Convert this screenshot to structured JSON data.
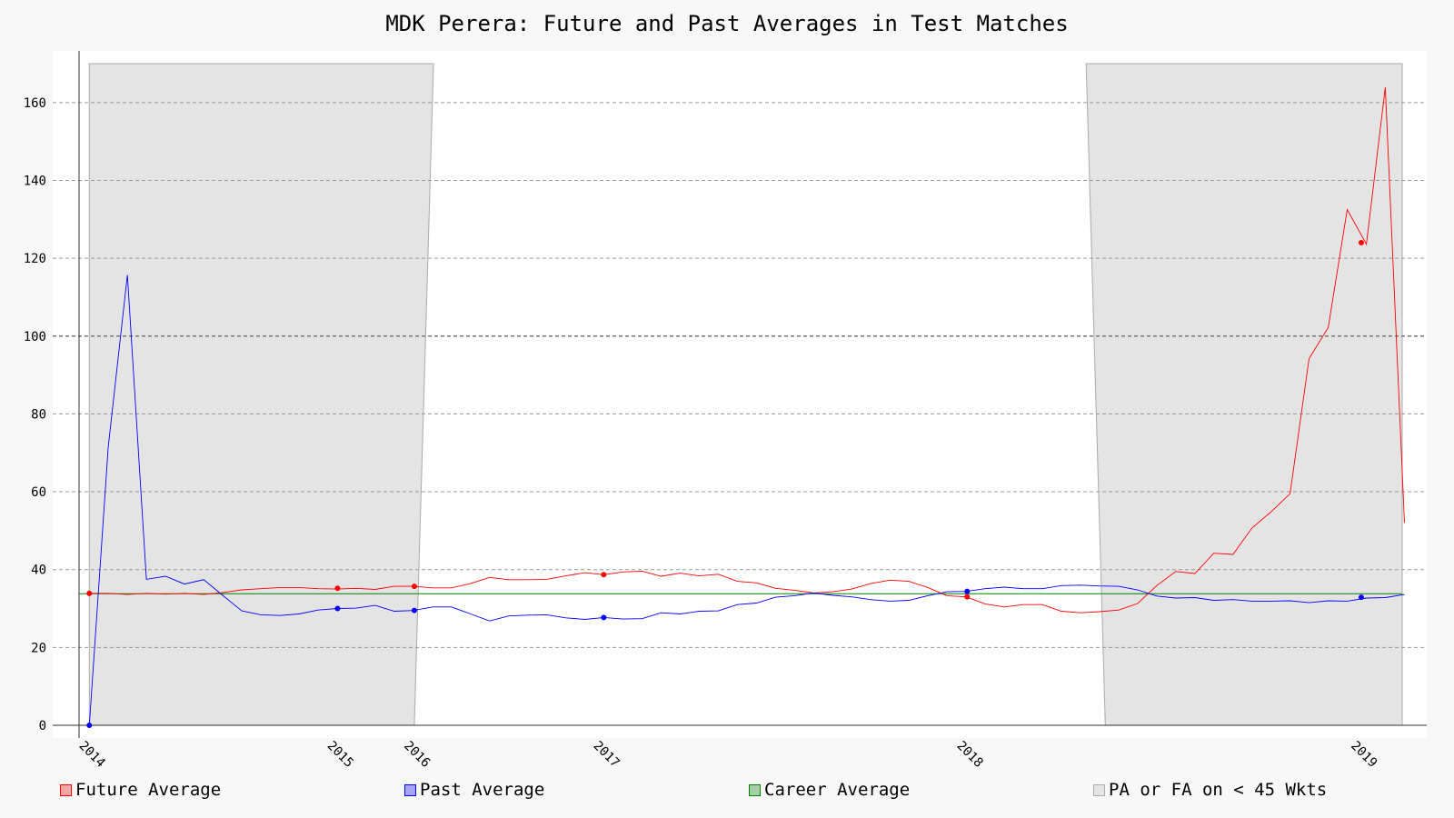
{
  "chart_data": {
    "type": "line",
    "title": "MDK Perera: Future and Past Averages in Test Matches",
    "xlabel": "",
    "ylabel": "",
    "xlim": [
      2013.96,
      2019.13
    ],
    "ylim": [
      0,
      170
    ],
    "yticks": [
      0,
      20,
      40,
      60,
      80,
      100,
      120,
      140,
      160
    ],
    "xticks": [
      {
        "label": "2014",
        "x": 2014.0
      },
      {
        "label": "2015",
        "x": 2014.97
      },
      {
        "label": "2016",
        "x": 2015.27
      },
      {
        "label": "2017",
        "x": 2016.01
      },
      {
        "label": "2018",
        "x": 2017.43
      },
      {
        "label": "2019",
        "x": 2018.97
      }
    ],
    "grid": "horizontal-dashed",
    "legend_position": "bottom",
    "colors": {
      "future": "#ff0000",
      "past": "#0000ff",
      "career": "#008000",
      "shade": "#e4e4e4",
      "shade_edge": "#aaaaaa"
    },
    "career_average": 33.8,
    "shaded_regions": [
      {
        "bottom": [
          [
            2014.0,
            0
          ],
          [
            2015.27,
            0
          ]
        ],
        "top": [
          [
            2014.0,
            170
          ],
          [
            2015.345,
            170
          ]
        ]
      },
      {
        "bottom": [
          [
            2017.97,
            0
          ],
          [
            2019.13,
            0
          ]
        ],
        "top": [
          [
            2017.895,
            170
          ],
          [
            2019.13,
            170
          ]
        ]
      }
    ],
    "series": [
      {
        "name": "Future Average",
        "key": "future",
        "markers": [
          [
            2014.0,
            33.9
          ],
          [
            2014.97,
            35.2
          ],
          [
            2015.27,
            35.7
          ],
          [
            2016.01,
            38.7
          ],
          [
            2017.43,
            33.0
          ],
          [
            2018.97,
            124.0
          ]
        ],
        "points": [
          [
            2014.0,
            33.9
          ],
          [
            2014.074,
            33.9
          ],
          [
            2014.149,
            33.6
          ],
          [
            2014.223,
            33.9
          ],
          [
            2014.298,
            33.7
          ],
          [
            2014.372,
            33.9
          ],
          [
            2014.447,
            33.6
          ],
          [
            2014.521,
            34.1
          ],
          [
            2014.596,
            34.8
          ],
          [
            2014.67,
            35.1
          ],
          [
            2014.745,
            35.4
          ],
          [
            2014.819,
            35.4
          ],
          [
            2014.894,
            35.1
          ],
          [
            2014.968,
            35.0
          ],
          [
            2015.043,
            35.2
          ],
          [
            2015.117,
            34.9
          ],
          [
            2015.192,
            35.7
          ],
          [
            2015.266,
            35.7
          ],
          [
            2015.341,
            35.3
          ],
          [
            2015.415,
            35.3
          ],
          [
            2015.49,
            36.4
          ],
          [
            2015.564,
            38.0
          ],
          [
            2015.639,
            37.4
          ],
          [
            2015.713,
            37.4
          ],
          [
            2015.787,
            37.5
          ],
          [
            2015.862,
            38.4
          ],
          [
            2015.936,
            39.2
          ],
          [
            2016.011,
            38.7
          ],
          [
            2016.085,
            39.4
          ],
          [
            2016.16,
            39.6
          ],
          [
            2016.234,
            38.3
          ],
          [
            2016.309,
            39.1
          ],
          [
            2016.383,
            38.4
          ],
          [
            2016.458,
            38.8
          ],
          [
            2016.532,
            37.0
          ],
          [
            2016.607,
            36.6
          ],
          [
            2016.681,
            35.2
          ],
          [
            2016.756,
            34.7
          ],
          [
            2016.83,
            34.0
          ],
          [
            2016.905,
            34.3
          ],
          [
            2016.979,
            35.0
          ],
          [
            2017.053,
            36.4
          ],
          [
            2017.128,
            37.3
          ],
          [
            2017.202,
            37.0
          ],
          [
            2017.277,
            35.4
          ],
          [
            2017.351,
            33.3
          ],
          [
            2017.426,
            33.0
          ],
          [
            2017.5,
            31.2
          ],
          [
            2017.575,
            30.4
          ],
          [
            2017.649,
            31.0
          ],
          [
            2017.724,
            31.0
          ],
          [
            2017.798,
            29.3
          ],
          [
            2017.873,
            28.9
          ],
          [
            2017.947,
            29.2
          ],
          [
            2018.022,
            29.6
          ],
          [
            2018.096,
            31.3
          ],
          [
            2018.171,
            35.9
          ],
          [
            2018.245,
            39.5
          ],
          [
            2018.32,
            39.0
          ],
          [
            2018.394,
            44.2
          ],
          [
            2018.469,
            43.9
          ],
          [
            2018.543,
            50.7
          ],
          [
            2018.617,
            54.8
          ],
          [
            2018.692,
            59.5
          ],
          [
            2018.766,
            94.2
          ],
          [
            2018.841,
            102.2
          ],
          [
            2018.915,
            132.5
          ],
          [
            2018.99,
            123.6
          ],
          [
            2019.064,
            163.9
          ],
          [
            2019.139,
            52.0
          ]
        ]
      },
      {
        "name": "Past Average",
        "key": "past",
        "markers": [
          [
            2014.0,
            0.0
          ],
          [
            2014.97,
            30.0
          ],
          [
            2015.27,
            29.5
          ],
          [
            2016.01,
            27.7
          ],
          [
            2017.43,
            34.4
          ],
          [
            2018.97,
            32.9
          ]
        ],
        "points": [
          [
            2014.0,
            0.0
          ],
          [
            2014.074,
            71.5
          ],
          [
            2014.149,
            115.7
          ],
          [
            2014.223,
            37.5
          ],
          [
            2014.298,
            38.3
          ],
          [
            2014.372,
            36.3
          ],
          [
            2014.447,
            37.4
          ],
          [
            2014.521,
            33.4
          ],
          [
            2014.596,
            29.4
          ],
          [
            2014.67,
            28.4
          ],
          [
            2014.745,
            28.2
          ],
          [
            2014.819,
            28.6
          ],
          [
            2014.894,
            29.6
          ],
          [
            2014.968,
            30.0
          ],
          [
            2015.043,
            30.1
          ],
          [
            2015.117,
            30.8
          ],
          [
            2015.192,
            29.3
          ],
          [
            2015.266,
            29.5
          ],
          [
            2015.341,
            30.4
          ],
          [
            2015.415,
            30.4
          ],
          [
            2015.49,
            28.6
          ],
          [
            2015.564,
            26.8
          ],
          [
            2015.639,
            28.1
          ],
          [
            2015.713,
            28.3
          ],
          [
            2015.787,
            28.4
          ],
          [
            2015.862,
            27.6
          ],
          [
            2015.936,
            27.2
          ],
          [
            2016.011,
            27.7
          ],
          [
            2016.085,
            27.3
          ],
          [
            2016.16,
            27.4
          ],
          [
            2016.234,
            28.9
          ],
          [
            2016.309,
            28.6
          ],
          [
            2016.383,
            29.3
          ],
          [
            2016.458,
            29.4
          ],
          [
            2016.532,
            31.0
          ],
          [
            2016.607,
            31.4
          ],
          [
            2016.681,
            32.9
          ],
          [
            2016.756,
            33.3
          ],
          [
            2016.83,
            34.0
          ],
          [
            2016.905,
            33.4
          ],
          [
            2016.979,
            33.0
          ],
          [
            2017.053,
            32.3
          ],
          [
            2017.128,
            31.9
          ],
          [
            2017.202,
            32.1
          ],
          [
            2017.277,
            33.3
          ],
          [
            2017.351,
            34.3
          ],
          [
            2017.426,
            34.4
          ],
          [
            2017.5,
            35.1
          ],
          [
            2017.575,
            35.5
          ],
          [
            2017.649,
            35.1
          ],
          [
            2017.724,
            35.1
          ],
          [
            2017.798,
            35.9
          ],
          [
            2017.873,
            36.0
          ],
          [
            2017.947,
            35.8
          ],
          [
            2018.022,
            35.7
          ],
          [
            2018.096,
            34.8
          ],
          [
            2018.171,
            33.2
          ],
          [
            2018.245,
            32.7
          ],
          [
            2018.32,
            32.8
          ],
          [
            2018.394,
            32.1
          ],
          [
            2018.469,
            32.3
          ],
          [
            2018.543,
            31.9
          ],
          [
            2018.617,
            31.9
          ],
          [
            2018.692,
            32.0
          ],
          [
            2018.766,
            31.5
          ],
          [
            2018.841,
            32.0
          ],
          [
            2018.915,
            31.9
          ],
          [
            2018.99,
            32.7
          ],
          [
            2019.064,
            32.8
          ],
          [
            2019.139,
            33.6
          ]
        ]
      }
    ],
    "legend": [
      {
        "label": "Future Average",
        "key": "future"
      },
      {
        "label": "Past Average",
        "key": "past"
      },
      {
        "label": "Career Average",
        "key": "career"
      },
      {
        "label": "PA or FA on < 45 Wkts",
        "key": "shade"
      }
    ]
  }
}
